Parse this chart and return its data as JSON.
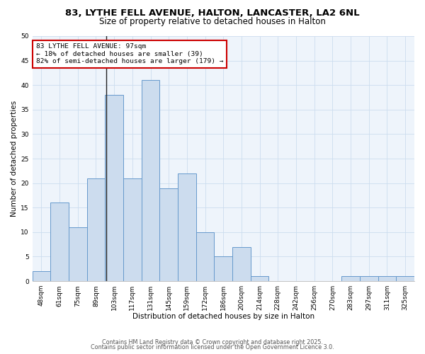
{
  "title1": "83, LYTHE FELL AVENUE, HALTON, LANCASTER, LA2 6NL",
  "title2": "Size of property relative to detached houses in Halton",
  "xlabel": "Distribution of detached houses by size in Halton",
  "ylabel": "Number of detached properties",
  "categories": [
    "48sqm",
    "61sqm",
    "75sqm",
    "89sqm",
    "103sqm",
    "117sqm",
    "131sqm",
    "145sqm",
    "159sqm",
    "172sqm",
    "186sqm",
    "200sqm",
    "214sqm",
    "228sqm",
    "242sqm",
    "256sqm",
    "270sqm",
    "283sqm",
    "297sqm",
    "311sqm",
    "325sqm"
  ],
  "values": [
    2,
    16,
    11,
    21,
    38,
    21,
    41,
    19,
    22,
    10,
    5,
    7,
    1,
    0,
    0,
    0,
    0,
    1,
    1,
    1,
    1
  ],
  "bar_color": "#ccdcee",
  "bar_edge_color": "#6699cc",
  "bar_edge_width": 0.7,
  "ylim": [
    0,
    50
  ],
  "yticks": [
    0,
    5,
    10,
    15,
    20,
    25,
    30,
    35,
    40,
    45,
    50
  ],
  "vline_x_index": 3.57,
  "vline_color": "#222222",
  "annotation_text": "83 LYTHE FELL AVENUE: 97sqm\n← 18% of detached houses are smaller (39)\n82% of semi-detached houses are larger (179) →",
  "annotation_box_edgecolor": "#cc0000",
  "annotation_box_bg": "#ffffff",
  "footer1": "Contains HM Land Registry data © Crown copyright and database right 2025.",
  "footer2": "Contains public sector information licensed under the Open Government Licence 3.0.",
  "grid_color": "#ccddee",
  "background_color": "#ffffff",
  "plot_bg_color": "#eef4fb",
  "title1_fontsize": 9.5,
  "title2_fontsize": 8.5,
  "annotation_fontsize": 6.8,
  "xlabel_fontsize": 7.5,
  "ylabel_fontsize": 7.5,
  "tick_fontsize": 6.5,
  "footer_fontsize": 5.8
}
